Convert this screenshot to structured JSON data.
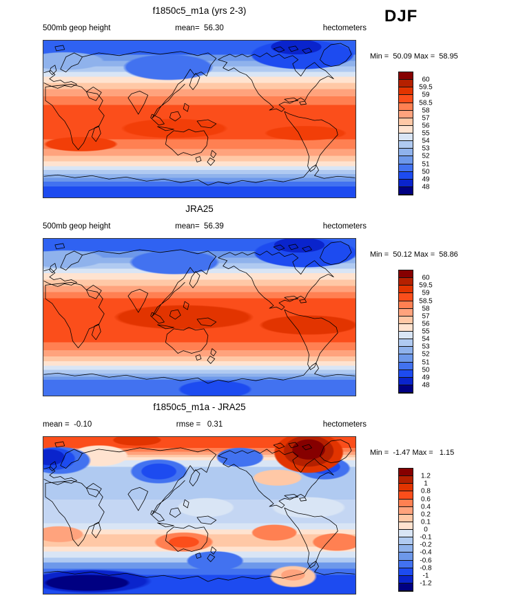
{
  "header": {
    "season_label": "DJF"
  },
  "palette": {
    "colors_top_to_bottom": [
      "#860000",
      "#B52000",
      "#E23400",
      "#FB4E1B",
      "#FF8052",
      "#FFA37D",
      "#FFC8A6",
      "#FFE3D0",
      "#D9E5F5",
      "#B0CAF1",
      "#8FB2EC",
      "#6D98EA",
      "#4272F0",
      "#1D4BF0",
      "#0A24CC",
      "#000082"
    ]
  },
  "panels": [
    {
      "id": "model",
      "title": "f1850c5_m1a (yrs 2-3)",
      "left_label": "500mb geop height",
      "center_label": "mean=  56.30",
      "right_label": "hectometers",
      "minmax_label": "Min =  50.09 Max =  58.95",
      "colorbar_labels": [
        "60",
        "59.5",
        "59",
        "58.5",
        "58",
        "57",
        "56",
        "55",
        "54",
        "53",
        "52",
        "51",
        "50",
        "49",
        "48"
      ]
    },
    {
      "id": "obs",
      "title": "JRA25",
      "left_label": "500mb geop height",
      "center_label": "mean=  56.39",
      "right_label": "hectometers",
      "minmax_label": "Min =  50.12 Max =  58.86",
      "colorbar_labels": [
        "60",
        "59.5",
        "59",
        "58.5",
        "58",
        "57",
        "56",
        "55",
        "54",
        "53",
        "52",
        "51",
        "50",
        "49",
        "48"
      ]
    },
    {
      "id": "diff",
      "title": "f1850c5_m1a - JRA25",
      "left_label": "mean =  -0.10",
      "center_label": "rmse =   0.31",
      "right_label": "hectometers",
      "minmax_label": "Min =  -1.47 Max =   1.15",
      "colorbar_labels": [
        "1.2",
        "1",
        "0.8",
        "0.6",
        "0.4",
        "0.2",
        "0.1",
        "0",
        "-0.1",
        "-0.2",
        "-0.4",
        "-0.6",
        "-0.8",
        "-1",
        "-1.2"
      ]
    }
  ],
  "chart_data": [
    {
      "type": "heatmap",
      "subtype": "filled-contour global lat-lon map, Pacific-centered, coastlines overlaid",
      "title": "f1850c5_m1a (yrs 2-3)",
      "variable": "500mb geop height",
      "units": "hectometers",
      "season": "DJF",
      "mean": 56.3,
      "min": 50.09,
      "max": 58.95,
      "contour_levels": [
        48,
        49,
        50,
        51,
        52,
        53,
        54,
        55,
        56,
        57,
        58,
        58.5,
        59,
        59.5,
        60
      ],
      "legend_position": "right",
      "pattern": "zonal bands: ~58-59 (deep orange) across tropics/subtropics, decreasing poleward; ~50-52 (blue) over Arctic with minimum over NE Canada/Greenland; ~50-52 (blue) around Antarctica"
    },
    {
      "type": "heatmap",
      "subtype": "filled-contour global lat-lon map, Pacific-centered, coastlines overlaid",
      "title": "JRA25",
      "variable": "500mb geop height",
      "units": "hectometers",
      "season": "DJF",
      "mean": 56.39,
      "min": 50.12,
      "max": 58.86,
      "contour_levels": [
        48,
        49,
        50,
        51,
        52,
        53,
        54,
        55,
        56,
        57,
        58,
        58.5,
        59,
        59.5,
        60
      ],
      "legend_position": "right",
      "pattern": "same zonal structure as model panel; slightly broader/deeper orange (58.5-59) core in tropics"
    },
    {
      "type": "heatmap",
      "subtype": "filled-contour global lat-lon difference map, Pacific-centered, coastlines overlaid",
      "title": "f1850c5_m1a - JRA25",
      "variable": "500mb geop height difference",
      "units": "hectometers",
      "season": "DJF",
      "mean": -0.1,
      "rmse": 0.31,
      "min": -1.47,
      "max": 1.15,
      "contour_levels": [
        -1.2,
        -1,
        -0.8,
        -0.6,
        -0.4,
        -0.2,
        -0.1,
        0,
        0.1,
        0.2,
        0.4,
        0.6,
        0.8,
        1,
        1.2
      ],
      "legend_position": "right",
      "pattern": "positive (orange/red, up to ~1.1) across Arctic with maximum over NE Canada/Greenland; negative pockets (blue) over N Europe, Japan/NW Pacific and N Atlantic; weak negative (-0.1 to -0.4) through tropics; positive band (~0.2-0.8) near 50-60S strongest near New Zealand; strong negative (down to ~-1.4, navy) around Antarctica, minimum south of Africa"
    }
  ]
}
